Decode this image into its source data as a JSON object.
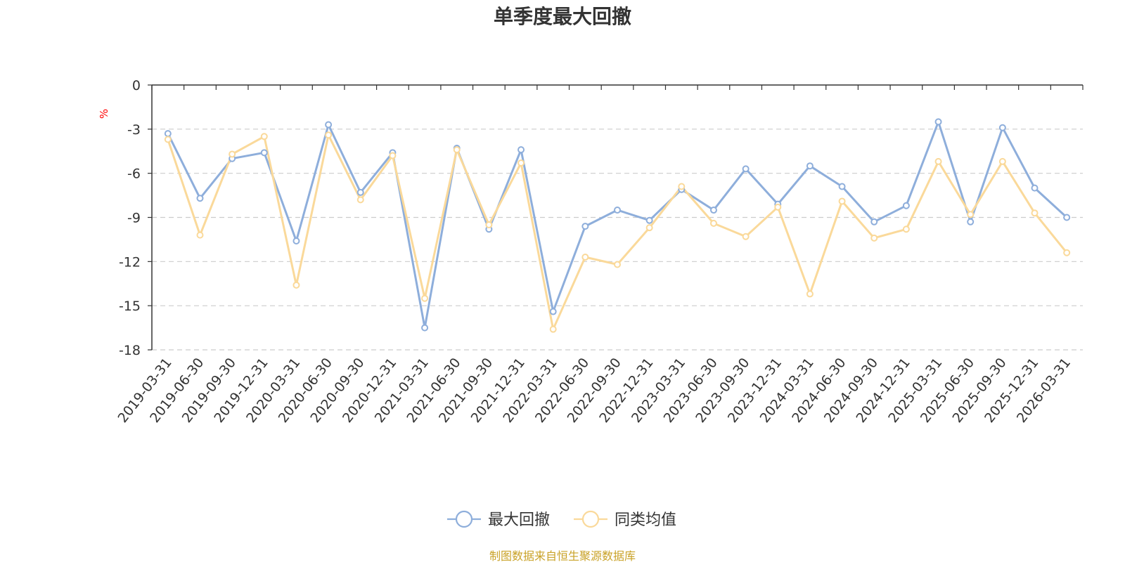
{
  "chart_data": {
    "type": "line",
    "title": "单季度最大回撤",
    "ylabel": "%",
    "ylim": [
      -18,
      0
    ],
    "yticks": [
      0,
      -3,
      -6,
      -9,
      -12,
      -15,
      -18
    ],
    "grid": true,
    "legend_position": "bottom",
    "categories": [
      "2019-03-31",
      "2019-06-30",
      "2019-09-30",
      "2019-12-31",
      "2020-03-31",
      "2020-06-30",
      "2020-09-30",
      "2020-12-31",
      "2021-03-31",
      "2021-06-30",
      "2021-09-30",
      "2021-12-31",
      "2022-03-31",
      "2022-06-30",
      "2022-09-30",
      "2022-12-31",
      "2023-03-31",
      "2023-06-30",
      "2023-09-30",
      "2023-12-31",
      "2024-03-31",
      "2024-06-30",
      "2024-09-30",
      "2024-12-31",
      "2025-03-31",
      "2025-06-30",
      "2025-09-30",
      "2025-12-31",
      "2026-03-31"
    ],
    "series": [
      {
        "name": "最大回撤",
        "color": "#8eaedb",
        "values": [
          -3.3,
          -7.7,
          -5.0,
          -4.6,
          -10.6,
          -2.7,
          -7.3,
          -4.6,
          -16.5,
          -4.3,
          -9.8,
          -4.4,
          -15.4,
          -9.6,
          -8.5,
          -9.2,
          -7.1,
          -8.5,
          -5.7,
          -8.1,
          -5.5,
          -6.9,
          -9.3,
          -8.2,
          -2.5,
          -9.3,
          -2.9,
          -7.0,
          -9.0
        ]
      },
      {
        "name": "同类均值",
        "color": "#fad99a",
        "values": [
          -3.7,
          -10.2,
          -4.7,
          -3.5,
          -13.6,
          -3.4,
          -7.8,
          -4.8,
          -14.5,
          -4.4,
          -9.5,
          -5.3,
          -16.6,
          -11.7,
          -12.2,
          -9.7,
          -6.9,
          -9.4,
          -10.3,
          -8.3,
          -14.2,
          -7.9,
          -10.4,
          -9.8,
          -5.2,
          -8.8,
          -5.2,
          -8.7,
          -11.4
        ]
      }
    ]
  },
  "source": "制图数据来自恒生聚源数据库"
}
